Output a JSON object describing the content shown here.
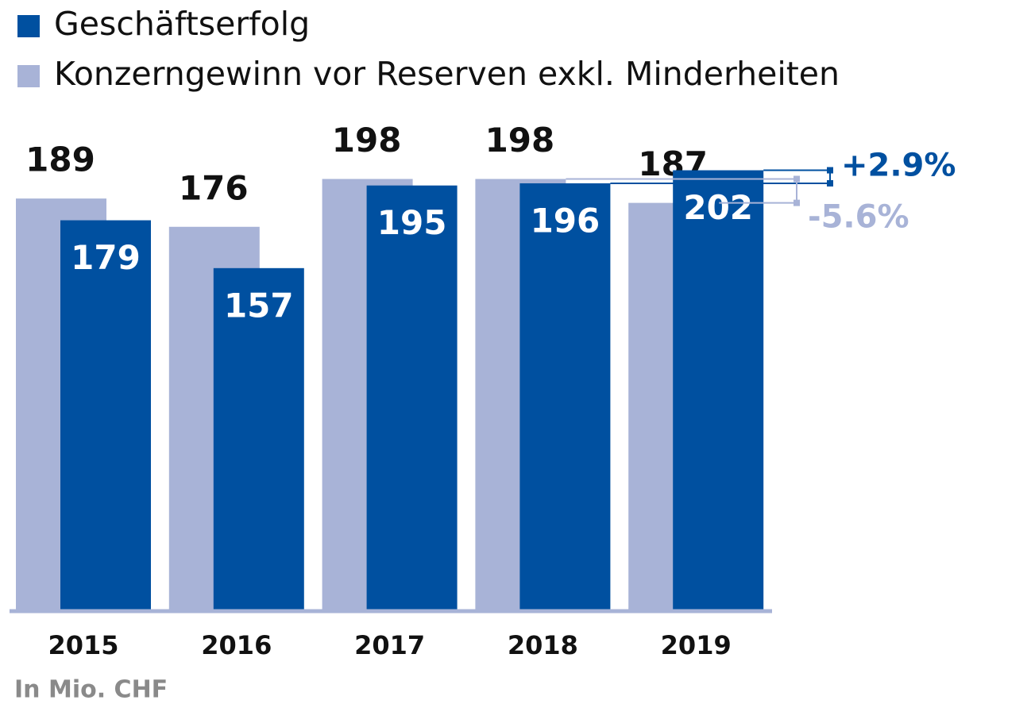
{
  "chart_data": {
    "type": "bar",
    "categories": [
      "2015",
      "2016",
      "2017",
      "2018",
      "2019"
    ],
    "series": [
      {
        "name": "Konzerngewinn vor Reserven exkl. Minderheiten",
        "color": "#a8b3d7",
        "values": [
          189,
          176,
          198,
          198,
          187
        ]
      },
      {
        "name": "Geschäftserfolg",
        "color": "#0050a0",
        "values": [
          179,
          157,
          195,
          196,
          202
        ]
      }
    ],
    "ylim": [
      0,
      200
    ],
    "annotations": [
      {
        "text": "+2.9%",
        "color": "#0050a0"
      },
      {
        "text": "-5.6%",
        "color": "#a8b3d7"
      }
    ],
    "note": "In Mio. CHF"
  }
}
